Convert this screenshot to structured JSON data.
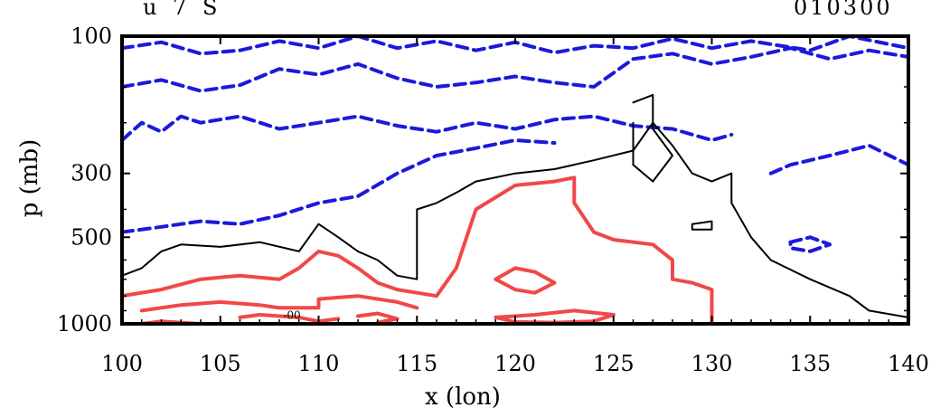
{
  "title_left": "u 7 S",
  "title_right": "010300",
  "chart_data": {
    "type": "contour",
    "xlabel": "x (lon)",
    "ylabel": "p (mb)",
    "xlim": [
      100,
      140
    ],
    "ylim_labels": [
      "100",
      "300",
      "500",
      "1000"
    ],
    "x_ticks": [
      "100",
      "105",
      "110",
      "115",
      "120",
      "125",
      "130",
      "135",
      "140"
    ],
    "y_ticks": [
      {
        "p": 100,
        "label": "100"
      },
      {
        "p": 300,
        "label": "300"
      },
      {
        "p": 500,
        "label": "500"
      },
      {
        "p": 1000,
        "label": "1000"
      }
    ],
    "annotation": "-00",
    "contour_styles": {
      "negative": {
        "color": "#1a1adb",
        "dash": "dashed"
      },
      "zero": {
        "color": "#000000",
        "dash": "solid"
      },
      "positive": {
        "color": "#f04848",
        "dash": "solid"
      }
    },
    "contours": [
      {
        "kind": "negative",
        "points": [
          [
            100,
            110
          ],
          [
            102,
            105
          ],
          [
            104,
            115
          ],
          [
            106,
            112
          ],
          [
            108,
            104
          ],
          [
            110,
            110
          ],
          [
            112,
            100
          ],
          [
            114,
            110
          ],
          [
            116,
            104
          ],
          [
            118,
            112
          ],
          [
            120,
            105
          ],
          [
            122,
            114
          ],
          [
            124,
            108
          ],
          [
            126,
            110
          ],
          [
            128,
            102
          ],
          [
            130,
            110
          ],
          [
            132,
            104
          ],
          [
            135,
            112
          ],
          [
            137,
            100
          ],
          [
            140,
            110
          ]
        ]
      },
      {
        "kind": "negative",
        "points": [
          [
            100,
            150
          ],
          [
            102,
            142
          ],
          [
            104,
            155
          ],
          [
            106,
            148
          ],
          [
            108,
            130
          ],
          [
            110,
            136
          ],
          [
            112,
            125
          ],
          [
            114,
            140
          ],
          [
            116,
            150
          ],
          [
            118,
            145
          ],
          [
            120,
            138
          ],
          [
            122,
            145
          ],
          [
            124,
            150
          ],
          [
            126,
            120
          ],
          [
            128,
            115
          ],
          [
            130,
            125
          ],
          [
            132,
            118
          ],
          [
            134,
            110
          ],
          [
            136,
            120
          ],
          [
            138,
            112
          ],
          [
            140,
            118
          ]
        ]
      },
      {
        "kind": "negative",
        "points": [
          [
            100,
            230
          ],
          [
            101,
            200
          ],
          [
            102,
            215
          ],
          [
            103,
            190
          ],
          [
            104,
            200
          ],
          [
            106,
            190
          ],
          [
            108,
            210
          ],
          [
            110,
            200
          ],
          [
            112,
            190
          ],
          [
            114,
            205
          ],
          [
            116,
            215
          ],
          [
            118,
            200
          ],
          [
            120,
            210
          ],
          [
            122,
            195
          ],
          [
            124,
            190
          ],
          [
            126,
            205
          ],
          [
            128,
            210
          ],
          [
            130,
            230
          ],
          [
            131,
            220
          ]
        ]
      },
      {
        "kind": "negative",
        "points": [
          [
            100,
            480
          ],
          [
            102,
            460
          ],
          [
            104,
            440
          ],
          [
            106,
            450
          ],
          [
            108,
            420
          ],
          [
            110,
            380
          ],
          [
            112,
            360
          ],
          [
            114,
            300
          ],
          [
            116,
            260
          ],
          [
            118,
            245
          ],
          [
            120,
            230
          ],
          [
            122,
            235
          ]
        ]
      },
      {
        "kind": "negative",
        "points": [
          [
            133,
            300
          ],
          [
            134,
            280
          ],
          [
            136,
            260
          ],
          [
            138,
            240
          ],
          [
            140,
            280
          ]
        ]
      },
      {
        "kind": "negative",
        "points": [
          [
            134,
            520
          ],
          [
            135,
            500
          ],
          [
            136,
            530
          ],
          [
            135,
            560
          ],
          [
            134,
            545
          ],
          [
            134,
            520
          ]
        ]
      },
      {
        "kind": "zero",
        "points": [
          [
            100,
            680
          ],
          [
            101,
            640
          ],
          [
            102,
            560
          ],
          [
            103,
            530
          ],
          [
            105,
            540
          ],
          [
            107,
            520
          ],
          [
            109,
            560
          ],
          [
            110,
            450
          ],
          [
            111,
            500
          ],
          [
            112,
            560
          ],
          [
            113,
            600
          ],
          [
            114,
            680
          ],
          [
            115,
            700
          ],
          [
            115,
            520
          ],
          [
            115,
            400
          ],
          [
            116,
            380
          ],
          [
            117,
            350
          ],
          [
            118,
            320
          ],
          [
            120,
            300
          ],
          [
            122,
            290
          ],
          [
            124,
            270
          ],
          [
            126,
            250
          ],
          [
            127,
            200
          ],
          [
            128,
            240
          ],
          [
            129,
            300
          ],
          [
            130,
            320
          ],
          [
            131,
            300
          ],
          [
            131,
            380
          ],
          [
            132,
            500
          ],
          [
            133,
            600
          ],
          [
            135,
            700
          ],
          [
            137,
            800
          ],
          [
            138,
            900
          ],
          [
            140,
            950
          ]
        ]
      },
      {
        "kind": "zero",
        "points": [
          [
            126,
            170
          ],
          [
            127,
            160
          ],
          [
            127,
            210
          ],
          [
            128,
            260
          ],
          [
            127,
            320
          ],
          [
            126,
            280
          ],
          [
            126,
            200
          ]
        ]
      },
      {
        "kind": "zero",
        "points": [
          [
            129,
            450
          ],
          [
            130,
            440
          ],
          [
            130,
            470
          ],
          [
            129,
            470
          ],
          [
            129,
            450
          ]
        ]
      },
      {
        "kind": "positive",
        "points": [
          [
            100,
            800
          ],
          [
            102,
            760
          ],
          [
            104,
            700
          ],
          [
            106,
            680
          ],
          [
            108,
            700
          ],
          [
            109,
            640
          ],
          [
            110,
            560
          ],
          [
            111,
            580
          ],
          [
            112,
            640
          ],
          [
            113,
            720
          ],
          [
            114,
            760
          ],
          [
            115,
            780
          ],
          [
            116,
            800
          ],
          [
            117,
            640
          ],
          [
            118,
            400
          ],
          [
            120,
            330
          ],
          [
            122,
            320
          ],
          [
            123,
            310
          ],
          [
            123,
            380
          ],
          [
            124,
            480
          ],
          [
            125,
            510
          ],
          [
            127,
            530
          ],
          [
            128,
            600
          ],
          [
            128,
            700
          ],
          [
            129,
            720
          ],
          [
            130,
            760
          ],
          [
            130,
            830
          ],
          [
            130,
            1000
          ]
        ]
      },
      {
        "kind": "positive",
        "points": [
          [
            101,
            900
          ],
          [
            103,
            860
          ],
          [
            105,
            840
          ],
          [
            107,
            860
          ],
          [
            108,
            880
          ],
          [
            110,
            880
          ],
          [
            110,
            820
          ],
          [
            112,
            800
          ],
          [
            114,
            840
          ],
          [
            115,
            880
          ]
        ]
      },
      {
        "kind": "positive",
        "points": [
          [
            106,
            950
          ],
          [
            107,
            930
          ],
          [
            109,
            950
          ],
          [
            110,
            980
          ],
          [
            111,
            960
          ]
        ]
      },
      {
        "kind": "positive",
        "points": [
          [
            119,
            700
          ],
          [
            120,
            640
          ],
          [
            121,
            660
          ],
          [
            122,
            720
          ],
          [
            121,
            780
          ],
          [
            120,
            760
          ],
          [
            119,
            700
          ]
        ]
      },
      {
        "kind": "positive",
        "points": [
          [
            119,
            950
          ],
          [
            121,
            930
          ],
          [
            123,
            900
          ],
          [
            125,
            930
          ],
          [
            124,
            980
          ],
          [
            122,
            990
          ],
          [
            120,
            985
          ],
          [
            119,
            950
          ]
        ]
      },
      {
        "kind": "positive",
        "points": [
          [
            101,
            1000
          ],
          [
            102,
            980
          ],
          [
            103,
            990
          ],
          [
            104,
            1000
          ]
        ]
      },
      {
        "kind": "positive",
        "points": [
          [
            112,
            940
          ],
          [
            113,
            920
          ],
          [
            114,
            960
          ],
          [
            113,
            990
          ]
        ]
      }
    ]
  }
}
